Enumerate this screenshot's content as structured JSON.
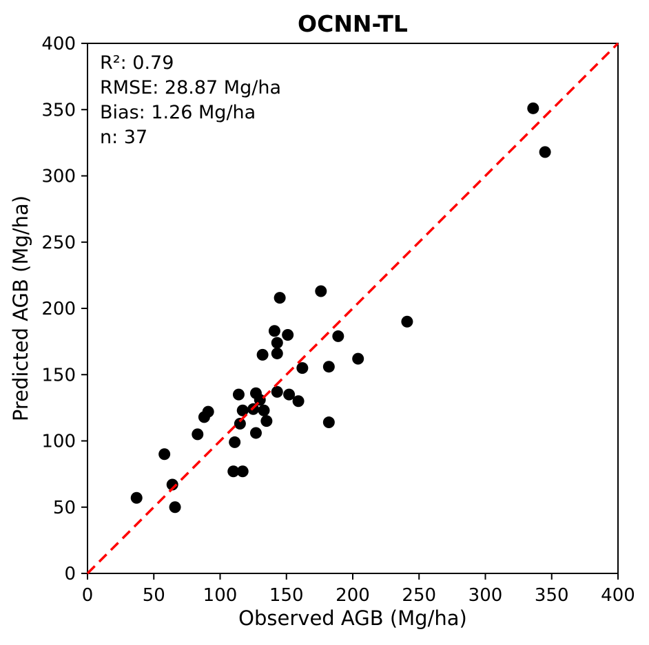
{
  "title": "OCNN-TL",
  "annotations": {
    "lines": [
      "R²: 0.79",
      "RMSE: 28.87 Mg/ha",
      "Bias: 1.26 Mg/ha",
      "n: 37"
    ]
  },
  "colors": {
    "point": "#000000",
    "identity_line": "#ff0000",
    "text": "#000000",
    "background": "#ffffff"
  },
  "chart_data": {
    "type": "scatter",
    "title": "OCNN-TL",
    "xlabel": "Observed AGB (Mg/ha)",
    "ylabel": "Predicted AGB (Mg/ha)",
    "xlim": [
      0,
      400
    ],
    "ylim": [
      0,
      400
    ],
    "xticks": [
      0,
      50,
      100,
      150,
      200,
      250,
      300,
      350,
      400
    ],
    "yticks": [
      0,
      50,
      100,
      150,
      200,
      250,
      300,
      350,
      400
    ],
    "grid": false,
    "legend": "none",
    "stats": {
      "r_squared": 0.79,
      "rmse_mg_ha": 28.87,
      "bias_mg_ha": 1.26,
      "n": 37
    },
    "identity_line": {
      "style": "dashed",
      "color": "#ff0000",
      "from": [
        0,
        0
      ],
      "to": [
        400,
        400
      ]
    },
    "series_name": "samples",
    "points": [
      [
        37,
        57
      ],
      [
        58,
        90
      ],
      [
        64,
        67
      ],
      [
        66,
        50
      ],
      [
        83,
        105
      ],
      [
        88,
        118
      ],
      [
        91,
        122
      ],
      [
        110,
        77
      ],
      [
        111,
        99
      ],
      [
        114,
        135
      ],
      [
        115,
        113
      ],
      [
        117,
        77
      ],
      [
        117,
        123
      ],
      [
        125,
        124
      ],
      [
        127,
        106
      ],
      [
        127,
        136
      ],
      [
        130,
        131
      ],
      [
        132,
        165
      ],
      [
        133,
        123
      ],
      [
        135,
        115
      ],
      [
        141,
        183
      ],
      [
        143,
        137
      ],
      [
        143,
        166
      ],
      [
        143,
        174
      ],
      [
        145,
        208
      ],
      [
        151,
        180
      ],
      [
        152,
        135
      ],
      [
        159,
        130
      ],
      [
        162,
        155
      ],
      [
        176,
        213
      ],
      [
        182,
        114
      ],
      [
        182,
        156
      ],
      [
        189,
        179
      ],
      [
        204,
        162
      ],
      [
        241,
        190
      ],
      [
        336,
        351
      ],
      [
        345,
        318
      ]
    ]
  }
}
